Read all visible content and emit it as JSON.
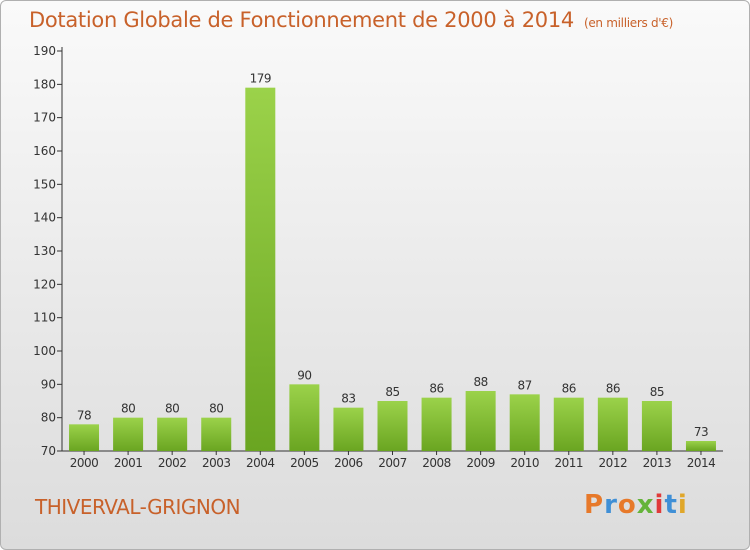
{
  "header": {
    "title": "Dotation Globale de Fonctionnement de 2000 à 2014",
    "unit": "(en milliers d'€)"
  },
  "footer": {
    "commune": "THIVERVAL-GRIGNON",
    "logo": {
      "text": "Proxiti",
      "letter_colors": [
        "#e7792a",
        "#3f8fd6",
        "#e7792a",
        "#65b43a",
        "#e03a3a",
        "#3f8fd6",
        "#e0a72a"
      ]
    }
  },
  "colors": {
    "bar_light": "#9bd24a",
    "bar_dark": "#6aa521",
    "text": "#333333",
    "accent": "#c8612a"
  },
  "chart_data": {
    "type": "bar",
    "title": "Dotation Globale de Fonctionnement de 2000 à 2014",
    "subtitle": "(en milliers d'€)",
    "xlabel": "",
    "ylabel": "",
    "categories": [
      "2000",
      "2001",
      "2002",
      "2003",
      "2004",
      "2005",
      "2006",
      "2007",
      "2008",
      "2009",
      "2010",
      "2011",
      "2012",
      "2013",
      "2014"
    ],
    "values": [
      78,
      80,
      80,
      80,
      179,
      90,
      83,
      85,
      86,
      88,
      87,
      86,
      86,
      85,
      73
    ],
    "ylim": [
      70,
      190
    ],
    "yticks": [
      70,
      80,
      90,
      100,
      110,
      120,
      130,
      140,
      150,
      160,
      170,
      180,
      190
    ],
    "grid": false,
    "data_labels": true
  }
}
